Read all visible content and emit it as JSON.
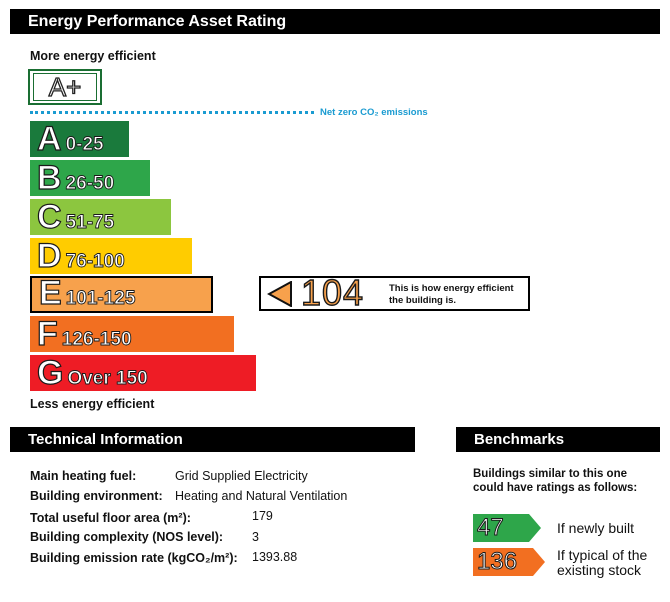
{
  "header": {
    "title": "Energy Performance Asset Rating"
  },
  "scale": {
    "top_caption": "More energy efficient",
    "bottom_caption": "Less energy efficient",
    "aplus_label": "A+",
    "net_zero_label": "Net zero CO₂ emissions",
    "bands": [
      {
        "letter": "A",
        "range": "0-25",
        "color": "#1a7a3c"
      },
      {
        "letter": "B",
        "range": "26-50",
        "color": "#2ea64a"
      },
      {
        "letter": "C",
        "range": "51-75",
        "color": "#8cc63f"
      },
      {
        "letter": "D",
        "range": "76-100",
        "color": "#ffcc00"
      },
      {
        "letter": "E",
        "range": "101-125",
        "color": "#f7a14c"
      },
      {
        "letter": "F",
        "range": "126-150",
        "color": "#f26f21"
      },
      {
        "letter": "G",
        "range": "Over 150",
        "color": "#ee1c25"
      }
    ]
  },
  "rating": {
    "value": "104",
    "band": "E",
    "message": "This is how energy efficient the building is."
  },
  "technical": {
    "title": "Technical Information",
    "rows": [
      {
        "label": "Main heating fuel:",
        "value": "Grid Supplied Electricity"
      },
      {
        "label": "Building environment:",
        "value": "Heating and Natural Ventilation"
      },
      {
        "label": "Total useful floor area (m²):",
        "value": "179"
      },
      {
        "label": "Building complexity (NOS level):",
        "value": "3"
      },
      {
        "label": "Building emission rate (kgCO₂/m²):",
        "value": "1393.88"
      }
    ]
  },
  "benchmarks": {
    "title": "Benchmarks",
    "intro": "Buildings similar to this one could have ratings as follows:",
    "items": [
      {
        "value": "47",
        "label": "If newly built",
        "color": "#2ea64a"
      },
      {
        "value": "136",
        "label": "If typical of the existing stock",
        "color": "#f26f21"
      }
    ]
  }
}
